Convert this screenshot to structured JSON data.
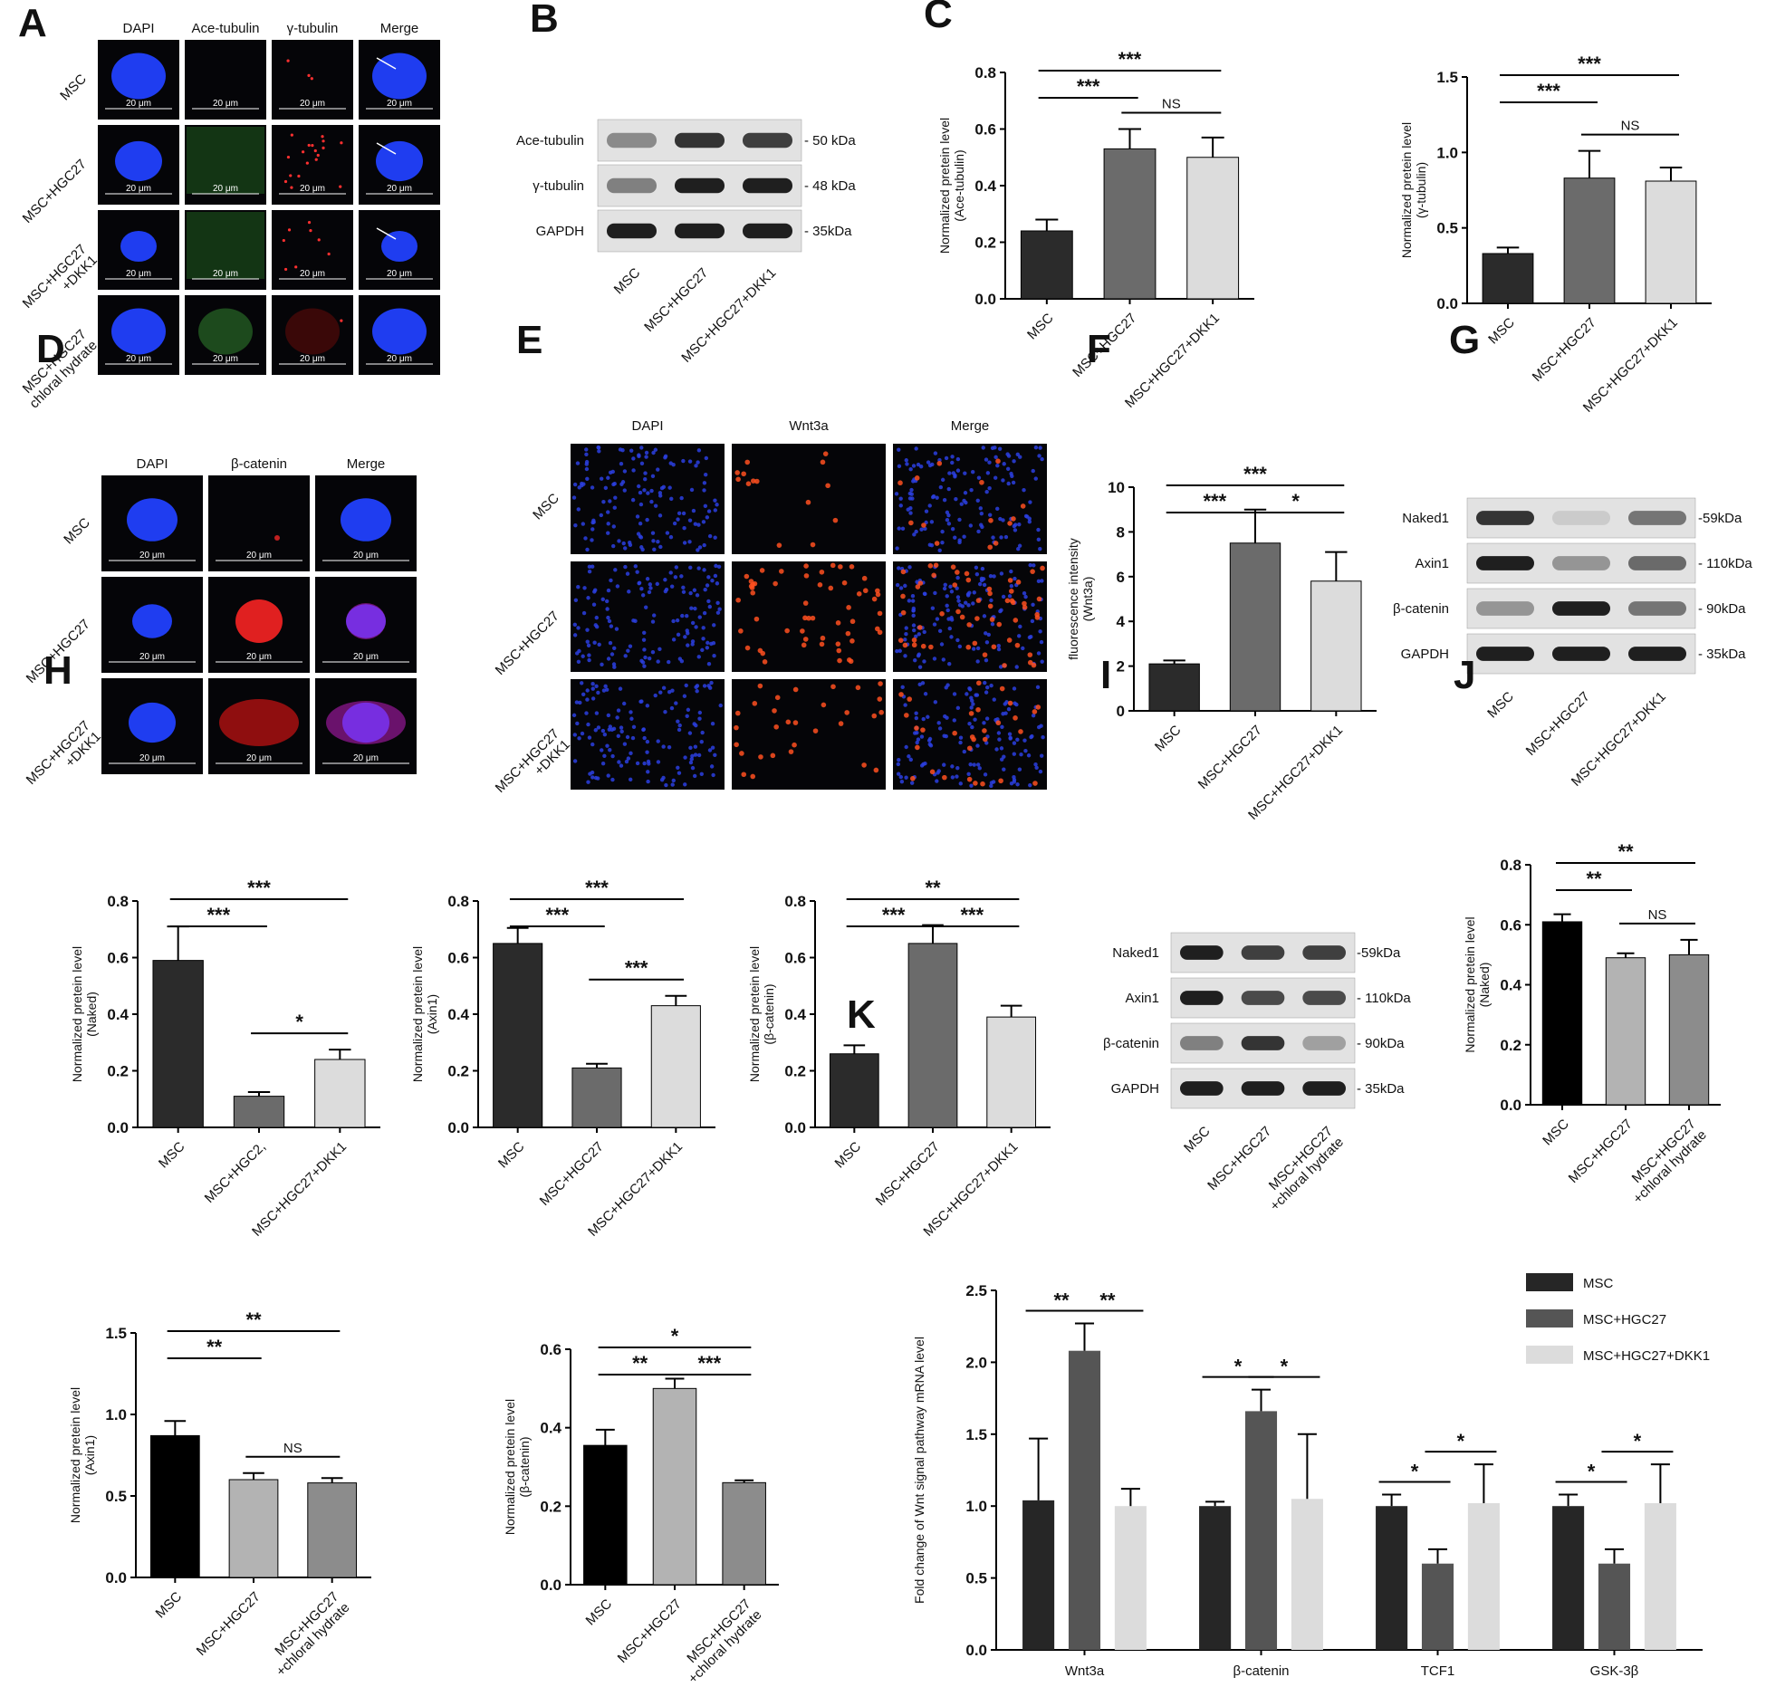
{
  "panel_letters": [
    "A",
    "B",
    "C",
    "D",
    "E",
    "F",
    "G",
    "H",
    "I",
    "J",
    "K"
  ],
  "microscopy": [
    {
      "panel": "A",
      "columns": [
        "DAPI",
        "Ace-tubulin",
        "γ-tubulin",
        "Merge"
      ],
      "rows": [
        "MSC",
        "MSC+HGC27",
        "MSC+HGC27\n+DKK1",
        "MSC+HGC27\nchloral hydrate"
      ],
      "scale_text": "20 μm"
    },
    {
      "panel": "D",
      "columns": [
        "DAPI",
        "β-catenin",
        "Merge"
      ],
      "rows": [
        "MSC",
        "MSC+HGC27",
        "MSC+HGC27\n+DKK1"
      ],
      "scale_text": "20 μm"
    },
    {
      "panel": "E",
      "columns": [
        "DAPI",
        "Wnt3a",
        "Merge"
      ],
      "rows": [
        "MSC",
        "MSC+HGC27",
        "MSC+HGC27\n+DKK1"
      ],
      "scale_text": ""
    }
  ],
  "western_blots": [
    {
      "panel": "B",
      "bands": [
        {
          "name": "Ace-tubulin",
          "size": "- 50 kDa",
          "intensity": [
            0.45,
            0.85,
            0.8
          ]
        },
        {
          "name": "γ-tubulin",
          "size": "- 48 kDa",
          "intensity": [
            0.5,
            0.95,
            0.95
          ]
        },
        {
          "name": "GAPDH",
          "size": "- 35kDa",
          "intensity": [
            0.95,
            0.95,
            0.95
          ]
        }
      ],
      "lanes": [
        "MSC",
        "MSC+HGC27",
        "MSC+HGC27+DKK1"
      ]
    },
    {
      "panel": "G",
      "bands": [
        {
          "name": "Naked1",
          "size": "-59kDa",
          "intensity": [
            0.85,
            0.15,
            0.55
          ]
        },
        {
          "name": "Axin1",
          "size": "- 110kDa",
          "intensity": [
            0.95,
            0.4,
            0.6
          ]
        },
        {
          "name": "β-catenin",
          "size": "- 90kDa",
          "intensity": [
            0.4,
            0.95,
            0.55
          ]
        },
        {
          "name": "GAPDH",
          "size": "- 35kDa",
          "intensity": [
            0.95,
            0.95,
            0.95
          ]
        }
      ],
      "lanes": [
        "MSC",
        "MSC+HGC27",
        "MSC+HGC27+DKK1"
      ]
    },
    {
      "panel": "I",
      "bands": [
        {
          "name": "Naked1",
          "size": "-59kDa",
          "intensity": [
            0.95,
            0.8,
            0.8
          ]
        },
        {
          "name": "Axin1",
          "size": "- 110kDa",
          "intensity": [
            0.95,
            0.75,
            0.75
          ]
        },
        {
          "name": "β-catenin",
          "size": "- 90kDa",
          "intensity": [
            0.5,
            0.85,
            0.35
          ]
        },
        {
          "name": "GAPDH",
          "size": "- 35kDa",
          "intensity": [
            0.95,
            0.95,
            0.95
          ]
        }
      ],
      "lanes": [
        "MSC",
        "MSC+HGC27",
        "MSC+HGC27\n+chloral hydrate"
      ]
    }
  ],
  "chart_data": [
    {
      "id": "C1",
      "panel": "C",
      "type": "bar",
      "categories": [
        "MSC",
        "MSC+HGC27",
        "MSC+HGC27+DKK1"
      ],
      "values": [
        0.24,
        0.53,
        0.5
      ],
      "errors": [
        0.04,
        0.07,
        0.07
      ],
      "colors": [
        "#2b2b2b",
        "#6b6b6b",
        "#dcdcdc"
      ],
      "ylim": [
        0,
        0.8
      ],
      "yticks": [
        "0.0",
        "0.2",
        "0.4",
        "0.6",
        "0.8"
      ],
      "ylabel": "Normalized pretein level\n(Ace-tubulin)",
      "significance": [
        {
          "from": 0,
          "to": 2,
          "text": "***"
        },
        {
          "from": 0,
          "to": 1,
          "text": "***"
        },
        {
          "from": 1,
          "to": 2,
          "text": "NS"
        }
      ]
    },
    {
      "id": "C2",
      "panel": "C",
      "type": "bar",
      "categories": [
        "MSC",
        "MSC+HGC27",
        "MSC+HGC27+DKK1"
      ],
      "values": [
        0.33,
        0.83,
        0.81
      ],
      "errors": [
        0.04,
        0.18,
        0.09
      ],
      "colors": [
        "#2b2b2b",
        "#6b6b6b",
        "#dcdcdc"
      ],
      "ylim": [
        0,
        1.5
      ],
      "yticks": [
        "0.0",
        "0.5",
        "1.0",
        "1.5"
      ],
      "ylabel": "Normalized pretein level\n(γ-tubulin)",
      "significance": [
        {
          "from": 0,
          "to": 2,
          "text": "***"
        },
        {
          "from": 0,
          "to": 1,
          "text": "***"
        },
        {
          "from": 1,
          "to": 2,
          "text": "NS"
        }
      ]
    },
    {
      "id": "F",
      "panel": "F",
      "type": "bar",
      "categories": [
        "MSC",
        "MSC+HGC27",
        "MSC+HGC27+DKK1"
      ],
      "values": [
        2.1,
        7.5,
        5.8
      ],
      "errors": [
        0.15,
        1.5,
        1.3
      ],
      "colors": [
        "#2b2b2b",
        "#6b6b6b",
        "#dcdcdc"
      ],
      "ylim": [
        0,
        10
      ],
      "yticks": [
        "0",
        "2",
        "4",
        "6",
        "8",
        "10"
      ],
      "ylabel": "fluorescence  intensity\n(Wnt3a)",
      "significance": [
        {
          "from": 0,
          "to": 2,
          "text": "***"
        },
        {
          "from": 0,
          "to": 1,
          "text": "***"
        },
        {
          "from": 1,
          "to": 2,
          "text": "*"
        }
      ]
    },
    {
      "id": "H1",
      "panel": "H",
      "type": "bar",
      "categories": [
        "MSC",
        "MSC+HGC2,",
        "MSC+HGC27+DKK1"
      ],
      "values": [
        0.59,
        0.11,
        0.24
      ],
      "errors": [
        0.12,
        0.015,
        0.035
      ],
      "colors": [
        "#2b2b2b",
        "#6b6b6b",
        "#dcdcdc"
      ],
      "ylim": [
        0,
        0.8
      ],
      "yticks": [
        "0.0",
        "0.2",
        "0.4",
        "0.6",
        "0.8"
      ],
      "ylabel": "Normalized pretein level\n(Naked)",
      "significance": [
        {
          "from": 0,
          "to": 2,
          "text": "***"
        },
        {
          "from": 0,
          "to": 1,
          "text": "***"
        },
        {
          "from": 1,
          "to": 2,
          "text": "*"
        }
      ]
    },
    {
      "id": "H2",
      "panel": "H",
      "type": "bar",
      "categories": [
        "MSC",
        "MSC+HGC27",
        "MSC+HGC27+DKK1"
      ],
      "values": [
        0.65,
        0.21,
        0.43
      ],
      "errors": [
        0.055,
        0.015,
        0.035
      ],
      "colors": [
        "#2b2b2b",
        "#6b6b6b",
        "#dcdcdc"
      ],
      "ylim": [
        0,
        0.8
      ],
      "yticks": [
        "0.0",
        "0.2",
        "0.4",
        "0.6",
        "0.8"
      ],
      "ylabel": "Normalized pretein level\n(Axin1)",
      "significance": [
        {
          "from": 0,
          "to": 2,
          "text": "***"
        },
        {
          "from": 0,
          "to": 1,
          "text": "***"
        },
        {
          "from": 1,
          "to": 2,
          "text": "***"
        }
      ]
    },
    {
      "id": "H3",
      "panel": "H",
      "type": "bar",
      "categories": [
        "MSC",
        "MSC+HGC27",
        "MSC+HGC27+DKK1"
      ],
      "values": [
        0.26,
        0.65,
        0.39
      ],
      "errors": [
        0.03,
        0.065,
        0.04
      ],
      "colors": [
        "#2b2b2b",
        "#6b6b6b",
        "#dcdcdc"
      ],
      "ylim": [
        0,
        0.8
      ],
      "yticks": [
        "0.0",
        "0.2",
        "0.4",
        "0.6",
        "0.8"
      ],
      "ylabel": "Normalized pretein level\n(β-catenin)",
      "significance": [
        {
          "from": 0,
          "to": 2,
          "text": "**"
        },
        {
          "from": 0,
          "to": 1,
          "text": "***"
        },
        {
          "from": 1,
          "to": 2,
          "text": "***"
        }
      ]
    },
    {
      "id": "J1",
      "panel": "J",
      "type": "bar",
      "categories": [
        "MSC",
        "MSC+HGC27",
        "MSC+HGC27\n+chloral hydrate"
      ],
      "values": [
        0.61,
        0.49,
        0.5
      ],
      "errors": [
        0.025,
        0.015,
        0.05
      ],
      "colors": [
        "#000000",
        "#b3b3b3",
        "#8c8c8c"
      ],
      "ylim": [
        0,
        0.8
      ],
      "yticks": [
        "0.0",
        "0.2",
        "0.4",
        "0.6",
        "0.8"
      ],
      "ylabel": "Normalized pretein level\n(Naked)",
      "significance": [
        {
          "from": 0,
          "to": 2,
          "text": "**"
        },
        {
          "from": 0,
          "to": 1,
          "text": "**"
        },
        {
          "from": 1,
          "to": 2,
          "text": "NS"
        }
      ]
    },
    {
      "id": "J2",
      "panel": "J",
      "type": "bar",
      "categories": [
        "MSC",
        "MSC+HGC27",
        "MSC+HGC27\n+chloral hydrate"
      ],
      "values": [
        0.87,
        0.6,
        0.58
      ],
      "errors": [
        0.09,
        0.04,
        0.03
      ],
      "colors": [
        "#000000",
        "#b3b3b3",
        "#8c8c8c"
      ],
      "ylim": [
        0,
        1.5
      ],
      "yticks": [
        "0.0",
        "0.5",
        "1.0",
        "1.5"
      ],
      "ylabel": "Normalized pretein level\n(Axin1)",
      "significance": [
        {
          "from": 0,
          "to": 2,
          "text": "**"
        },
        {
          "from": 0,
          "to": 1,
          "text": "**"
        },
        {
          "from": 1,
          "to": 2,
          "text": "NS"
        }
      ]
    },
    {
      "id": "J3",
      "panel": "J",
      "type": "bar",
      "categories": [
        "MSC",
        "MSC+HGC27",
        "MSC+HGC27\n+chloral hydrate"
      ],
      "values": [
        0.355,
        0.5,
        0.26
      ],
      "errors": [
        0.04,
        0.025,
        0.006
      ],
      "colors": [
        "#000000",
        "#b3b3b3",
        "#8c8c8c"
      ],
      "ylim": [
        0,
        0.6
      ],
      "yticks": [
        "0.0",
        "0.2",
        "0.4",
        "0.6"
      ],
      "ylabel": "Normalized pretein level\n(β-catenin)",
      "significance": [
        {
          "from": 0,
          "to": 2,
          "text": "*"
        },
        {
          "from": 0,
          "to": 1,
          "text": "**"
        },
        {
          "from": 1,
          "to": 2,
          "text": "***"
        }
      ]
    },
    {
      "id": "K",
      "panel": "K",
      "type": "bar",
      "categories": [
        "Wnt3a",
        "β-catenin",
        "TCF1",
        "GSK-3β"
      ],
      "series": [
        {
          "name": "MSC",
          "values": [
            1.04,
            1.0,
            1.0,
            1.0
          ],
          "errors": [
            0.43,
            0.03,
            0.08,
            0.08
          ],
          "color": "#262626"
        },
        {
          "name": "MSC+HGC27",
          "values": [
            2.08,
            1.66,
            0.6,
            0.6
          ],
          "errors": [
            0.19,
            0.15,
            0.1,
            0.1
          ],
          "color": "#555555"
        },
        {
          "name": "MSC+HGC27+DKK1",
          "values": [
            1.0,
            1.05,
            1.02,
            1.02
          ],
          "errors": [
            0.12,
            0.45,
            0.27,
            0.27
          ],
          "color": "#dcdcdc"
        }
      ],
      "ylim": [
        0,
        2.5
      ],
      "yticks": [
        "0.0",
        "0.5",
        "1.0",
        "1.5",
        "2.0",
        "2.5"
      ],
      "ylabel": "Fold change of Wnt signal pathway mRNA level",
      "significance": [
        {
          "group": 0,
          "from": 0,
          "to": 1,
          "text": "**"
        },
        {
          "group": 0,
          "from": 1,
          "to": 2,
          "text": "**"
        },
        {
          "group": 1,
          "from": 0,
          "to": 1,
          "text": "*"
        },
        {
          "group": 1,
          "from": 1,
          "to": 2,
          "text": "*"
        },
        {
          "group": 2,
          "from": 0,
          "to": 1,
          "text": "*"
        },
        {
          "group": 2,
          "from": 1,
          "to": 2,
          "text": "*"
        },
        {
          "group": 3,
          "from": 0,
          "to": 1,
          "text": "*"
        },
        {
          "group": 3,
          "from": 1,
          "to": 2,
          "text": "*"
        }
      ],
      "legend": [
        "MSC",
        "MSC+HGC27",
        "MSC+HGC27+DKK1"
      ]
    }
  ]
}
